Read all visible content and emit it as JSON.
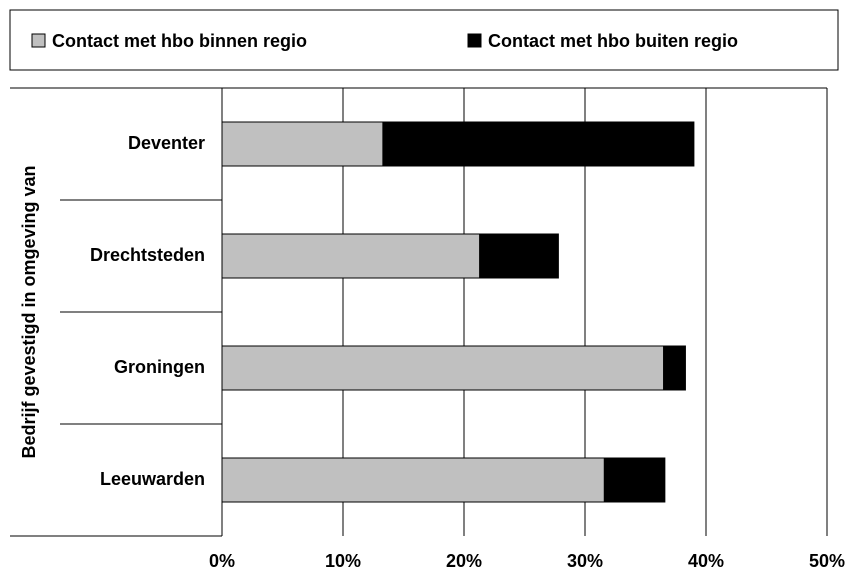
{
  "chart_data": {
    "type": "stacked_barh",
    "categories": [
      "Deventer",
      "Drechtsteden",
      "Groningen",
      "Leeuwarden"
    ],
    "series": [
      {
        "name": "Contact met hbo binnen regio",
        "color": "#c0c0c0",
        "values": [
          13.3,
          21.3,
          36.5,
          31.6
        ]
      },
      {
        "name": "Contact met hbo buiten regio",
        "color": "#000000",
        "values": [
          25.7,
          6.5,
          1.8,
          5.0
        ]
      }
    ],
    "ylabel": "Bedrijf gevestigd in omgeving van",
    "xlim": [
      0,
      50
    ],
    "xticks": [
      {
        "value": 0,
        "label": "0%"
      },
      {
        "value": 10,
        "label": "10%"
      },
      {
        "value": 20,
        "label": "20%"
      },
      {
        "value": 30,
        "label": "30%"
      },
      {
        "value": 40,
        "label": "40%"
      },
      {
        "value": 50,
        "label": "50%"
      }
    ],
    "grid": true,
    "legend": "top"
  }
}
